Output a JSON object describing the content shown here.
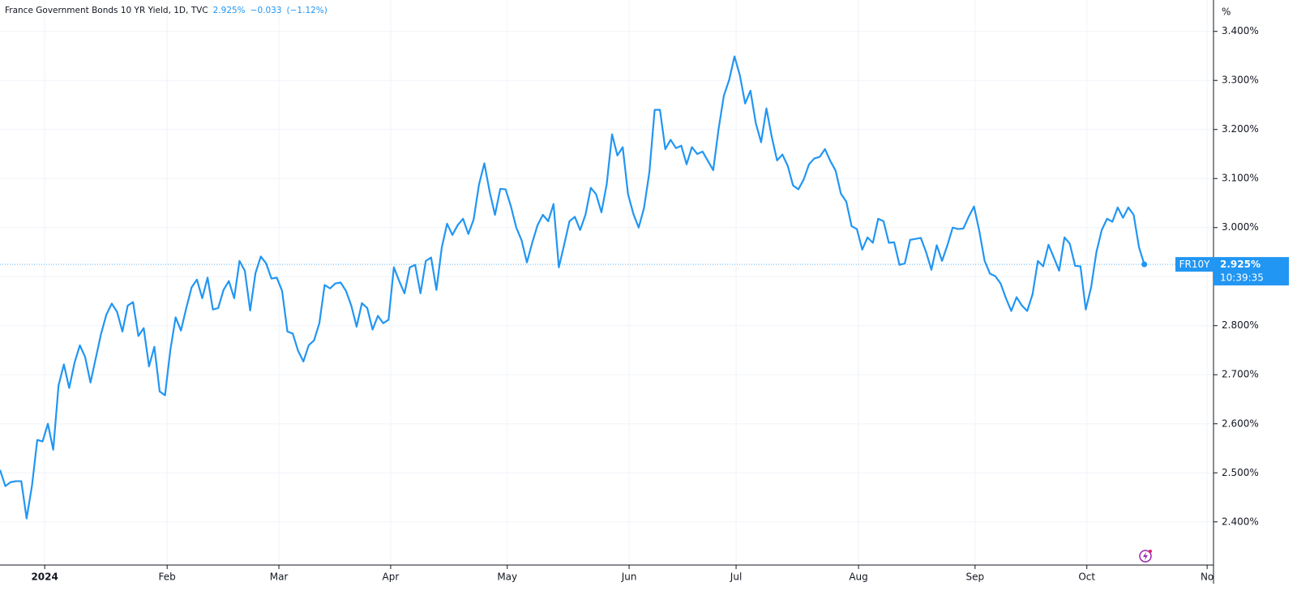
{
  "chart_data": {
    "type": "line",
    "title": "France Government Bonds 10 YR Yield, 1D, TVC",
    "last_value_label": "2.925%",
    "change_label": "−0.033",
    "change_pct_label": "(−1.12%)",
    "symbol": "FR10Y",
    "time_label": "10:39:35",
    "y_unit": "%",
    "grid": true,
    "xlim": [
      0,
      228
    ],
    "xticks": [
      {
        "value": 8.4,
        "label": "2024"
      },
      {
        "value": 31.4,
        "label": "Feb"
      },
      {
        "value": 52.4,
        "label": "Mar"
      },
      {
        "value": 73.4,
        "label": "Apr"
      },
      {
        "value": 95.3,
        "label": "May"
      },
      {
        "value": 118.2,
        "label": "Jun"
      },
      {
        "value": 138.3,
        "label": "Jul"
      },
      {
        "value": 161.3,
        "label": "Aug"
      },
      {
        "value": 183.2,
        "label": "Sep"
      },
      {
        "value": 204.2,
        "label": "Oct"
      },
      {
        "value": 226.8,
        "label": "No"
      }
    ],
    "ylim": [
      2.312,
      3.464
    ],
    "yticks": [
      {
        "value": 2.4,
        "label": "2.400%"
      },
      {
        "value": 2.5,
        "label": "2.500%"
      },
      {
        "value": 2.6,
        "label": "2.600%"
      },
      {
        "value": 2.7,
        "label": "2.700%"
      },
      {
        "value": 2.8,
        "label": "2.800%"
      },
      {
        "value": 2.9,
        "label": "2.900%"
      },
      {
        "value": 3.0,
        "label": "3.000%"
      },
      {
        "value": 3.1,
        "label": "3.100%"
      },
      {
        "value": 3.2,
        "label": "3.200%"
      },
      {
        "value": 3.3,
        "label": "3.300%"
      },
      {
        "value": 3.4,
        "label": "3.400%"
      }
    ],
    "series": [
      {
        "name": "FR10Y",
        "color": "#2196f3",
        "x": [
          0,
          1,
          2,
          3,
          4,
          5,
          6,
          7,
          8,
          9,
          10,
          11,
          12,
          13,
          14,
          15,
          16,
          17,
          18,
          19,
          20,
          21,
          22,
          23,
          24,
          25,
          26,
          27,
          28,
          29,
          30,
          31,
          32,
          33,
          34,
          35,
          36,
          37,
          38,
          39,
          40,
          41,
          42,
          43,
          44,
          45,
          46,
          47,
          48,
          49,
          50,
          51,
          52,
          53,
          54,
          55,
          56,
          57,
          58,
          59,
          60,
          61,
          62,
          63,
          64,
          65,
          66,
          67,
          68,
          69,
          70,
          71,
          72,
          73,
          74,
          75,
          76,
          77,
          78,
          79,
          80,
          81,
          82,
          83,
          84,
          85,
          86,
          87,
          88,
          89,
          90,
          91,
          92,
          93,
          94,
          95,
          96,
          97,
          98,
          99,
          100,
          101,
          102,
          103,
          104,
          105,
          106,
          107,
          108,
          109,
          110,
          111,
          112,
          113,
          114,
          115,
          116,
          117,
          118,
          119,
          120,
          121,
          122,
          123,
          124,
          125,
          126,
          127,
          128,
          129,
          130,
          131,
          132,
          133,
          134,
          135,
          136,
          137,
          138,
          139,
          140,
          141,
          142,
          143,
          144,
          145,
          146,
          147,
          148,
          149,
          150,
          151,
          152,
          153,
          154,
          155,
          156,
          157,
          158,
          159,
          160,
          161,
          162,
          163,
          164,
          165,
          166,
          167,
          168,
          169,
          170,
          171,
          172,
          173,
          174,
          175,
          176,
          177,
          178,
          179,
          180,
          181,
          182,
          183,
          184,
          185,
          186,
          187,
          188,
          189,
          190,
          191,
          192,
          193,
          194,
          195,
          196,
          197,
          198,
          199,
          200,
          201,
          202,
          203,
          204,
          205,
          206,
          207,
          208,
          209,
          210,
          211,
          212,
          213,
          214,
          215
        ],
        "values": [
          2.506,
          2.473,
          2.481,
          2.483,
          2.483,
          2.407,
          2.473,
          2.567,
          2.564,
          2.6,
          2.547,
          2.678,
          2.721,
          2.673,
          2.724,
          2.76,
          2.736,
          2.684,
          2.734,
          2.784,
          2.823,
          2.845,
          2.828,
          2.788,
          2.841,
          2.848,
          2.779,
          2.795,
          2.717,
          2.757,
          2.666,
          2.658,
          2.75,
          2.817,
          2.79,
          2.836,
          2.878,
          2.894,
          2.856,
          2.898,
          2.833,
          2.836,
          2.873,
          2.891,
          2.856,
          2.932,
          2.912,
          2.831,
          2.907,
          2.941,
          2.927,
          2.896,
          2.898,
          2.871,
          2.788,
          2.784,
          2.749,
          2.727,
          2.76,
          2.77,
          2.805,
          2.883,
          2.876,
          2.886,
          2.888,
          2.871,
          2.841,
          2.798,
          2.846,
          2.836,
          2.792,
          2.82,
          2.805,
          2.812,
          2.919,
          2.891,
          2.866,
          2.919,
          2.924,
          2.866,
          2.932,
          2.939,
          2.873,
          2.959,
          3.008,
          2.985,
          3.005,
          3.018,
          2.987,
          3.017,
          3.088,
          3.131,
          3.073,
          3.026,
          3.079,
          3.078,
          3.043,
          3.0,
          2.974,
          2.929,
          2.969,
          3.005,
          3.026,
          3.013,
          3.048,
          2.919,
          2.965,
          3.013,
          3.022,
          2.995,
          3.026,
          3.081,
          3.068,
          3.031,
          3.089,
          3.19,
          3.147,
          3.164,
          3.068,
          3.028,
          3.0,
          3.04,
          3.112,
          3.24,
          3.24,
          3.16,
          3.179,
          3.162,
          3.167,
          3.129,
          3.164,
          3.15,
          3.155,
          3.136,
          3.117,
          3.2,
          3.269,
          3.301,
          3.349,
          3.311,
          3.253,
          3.279,
          3.213,
          3.174,
          3.243,
          3.185,
          3.137,
          3.149,
          3.126,
          3.086,
          3.078,
          3.098,
          3.129,
          3.141,
          3.144,
          3.16,
          3.136,
          3.116,
          3.069,
          3.053,
          3.003,
          2.997,
          2.955,
          2.98,
          2.969,
          3.018,
          3.013,
          2.969,
          2.97,
          2.924,
          2.927,
          2.975,
          2.977,
          2.979,
          2.95,
          2.914,
          2.964,
          2.932,
          2.964,
          3.0,
          2.997,
          2.998,
          3.022,
          3.043,
          2.993,
          2.932,
          2.906,
          2.901,
          2.886,
          2.856,
          2.83,
          2.858,
          2.841,
          2.83,
          2.864,
          2.932,
          2.921,
          2.965,
          2.939,
          2.912,
          2.98,
          2.967,
          2.922,
          2.921,
          2.833,
          2.878,
          2.95,
          2.995,
          3.018,
          3.012,
          3.041,
          3.02,
          3.041,
          3.026,
          2.96,
          2.925
        ]
      }
    ]
  }
}
